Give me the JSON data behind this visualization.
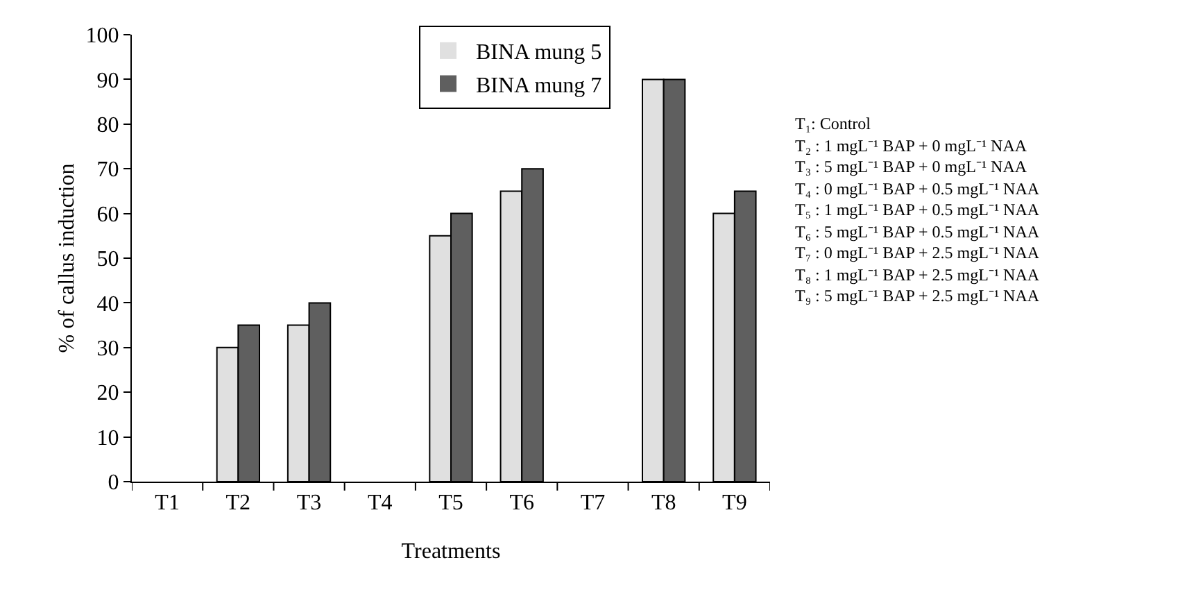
{
  "chart_data": {
    "type": "bar",
    "xlabel": "Treatments",
    "ylabel": "% of callus induction",
    "categories": [
      "T1",
      "T2",
      "T3",
      "T4",
      "T5",
      "T6",
      "T7",
      "T8",
      "T9"
    ],
    "series": [
      {
        "name": "BINA mung 5",
        "color": "#e0e0e0",
        "values": [
          0,
          30,
          35,
          0,
          55,
          65,
          0,
          90,
          60
        ]
      },
      {
        "name": "BINA mung 7",
        "color": "#5f5f5f",
        "values": [
          0,
          35,
          40,
          0,
          60,
          70,
          0,
          90,
          65
        ]
      }
    ],
    "ylim": [
      0,
      100
    ],
    "yticks": [
      0,
      10,
      20,
      30,
      40,
      50,
      60,
      70,
      80,
      90,
      100
    ],
    "grid": false,
    "legend": "top",
    "annotations": [
      "T₁: Control",
      "T₂ : 1 mgL⁻¹ BAP + 0 mgL⁻¹ NAA",
      "T₃ : 5 mgL⁻¹ BAP + 0 mgL⁻¹ NAA",
      "T₄ : 0 mgL⁻¹ BAP + 0.5 mgL⁻¹ NAA",
      "T₅ : 1 mgL⁻¹ BAP + 0.5 mgL⁻¹ NAA",
      "T₆ : 5 mgL⁻¹ BAP + 0.5 mgL⁻¹ NAA",
      "T₇ : 0 mgL⁻¹ BAP + 2.5 mgL⁻¹ NAA",
      "T₈ : 1 mgL⁻¹ BAP + 2.5 mgL⁻¹ NAA",
      "T₉ : 5 mgL⁻¹ BAP + 2.5 mgL⁻¹ NAA"
    ]
  }
}
